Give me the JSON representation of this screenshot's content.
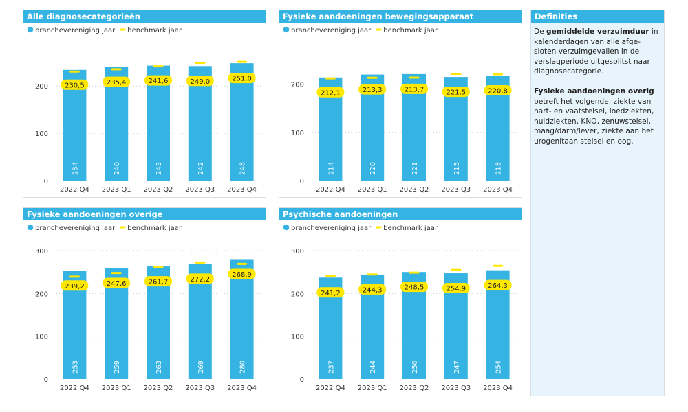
{
  "colors": {
    "header": "#35b4e3",
    "bar": "#35b4e3",
    "benchmark": "#ffe800",
    "definitions_bg": "#e8f4fb"
  },
  "legend": {
    "series_label": "branchevereniging jaar",
    "benchmark_label": "benchmark jaar"
  },
  "definitions": {
    "title": "Definities",
    "p1_prefix": "De ",
    "p1_bold": "gemiddelde verzuimduur",
    "p1_rest": " in kalenderdagen van alle afge-sloten verzuimgevallen in de verslagperiode uitgesplitst naar diagnosecategorie.",
    "p2_bold": "Fysieke aandoeningen overig",
    "p2_rest": " betreft het volgende: ziekte van hart- en vaatstelsel, loedziekten, huidziekten, KNO, zenuwstelsel, maag/darm/lever, ziekte aan het urogenitaan stelsel en oog."
  },
  "chart_data": [
    {
      "type": "bar",
      "title": "Alle diagnosecategorieën",
      "categories": [
        "2022 Q4",
        "2023 Q1",
        "2023 Q2",
        "2023 Q3",
        "2023 Q4"
      ],
      "series": [
        {
          "name": "branchevereniging jaar",
          "values": [
            234,
            240,
            243,
            242,
            248
          ]
        },
        {
          "name": "benchmark jaar",
          "values": [
            230.5,
            235.4,
            241.6,
            249.0,
            251.0
          ],
          "labels": [
            "230,5",
            "235,4",
            "241,6",
            "249,0",
            "251,0"
          ]
        }
      ],
      "yticks": [
        0,
        100,
        200
      ],
      "ylim": [
        0,
        270
      ]
    },
    {
      "type": "bar",
      "title": "Fysieke aandoeningen bewegingsapparaat",
      "categories": [
        "2022 Q4",
        "2023 Q1",
        "2023 Q2",
        "2023 Q3",
        "2023 Q4"
      ],
      "series": [
        {
          "name": "branchevereniging jaar",
          "values": [
            214,
            220,
            221,
            215,
            218
          ]
        },
        {
          "name": "benchmark jaar",
          "values": [
            212.1,
            213.3,
            213.7,
            221.5,
            220.8
          ],
          "labels": [
            "212,1",
            "213,3",
            "213,7",
            "221,5",
            "220,8"
          ]
        }
      ],
      "yticks": [
        0,
        100,
        200
      ],
      "ylim": [
        0,
        265
      ]
    },
    {
      "type": "bar",
      "title": "Fysieke aandoeningen overige",
      "categories": [
        "2022 Q4",
        "2023 Q1",
        "2023 Q2",
        "2023 Q3",
        "2023 Q4"
      ],
      "series": [
        {
          "name": "branchevereniging jaar",
          "values": [
            253,
            259,
            263,
            269,
            280
          ]
        },
        {
          "name": "benchmark jaar",
          "values": [
            239.2,
            247.6,
            261.7,
            272.2,
            268.9
          ],
          "labels": [
            "239,2",
            "247,6",
            "261,7",
            "272,2",
            "268,9"
          ]
        }
      ],
      "yticks": [
        0,
        100,
        200,
        300
      ],
      "ylim": [
        0,
        300
      ]
    },
    {
      "type": "bar",
      "title": "Psychische aandoeningen",
      "categories": [
        "2022 Q4",
        "2023 Q1",
        "2023 Q2",
        "2023 Q3",
        "2023 Q4"
      ],
      "series": [
        {
          "name": "branchevereniging jaar",
          "values": [
            237,
            244,
            250,
            247,
            254
          ]
        },
        {
          "name": "benchmark jaar",
          "values": [
            241.2,
            244.3,
            248.5,
            254.9,
            264.3
          ],
          "labels": [
            "241,2",
            "244,3",
            "248,5",
            "254,9",
            "264,3"
          ]
        }
      ],
      "yticks": [
        0,
        100,
        200,
        300
      ],
      "ylim": [
        0,
        300
      ]
    }
  ]
}
